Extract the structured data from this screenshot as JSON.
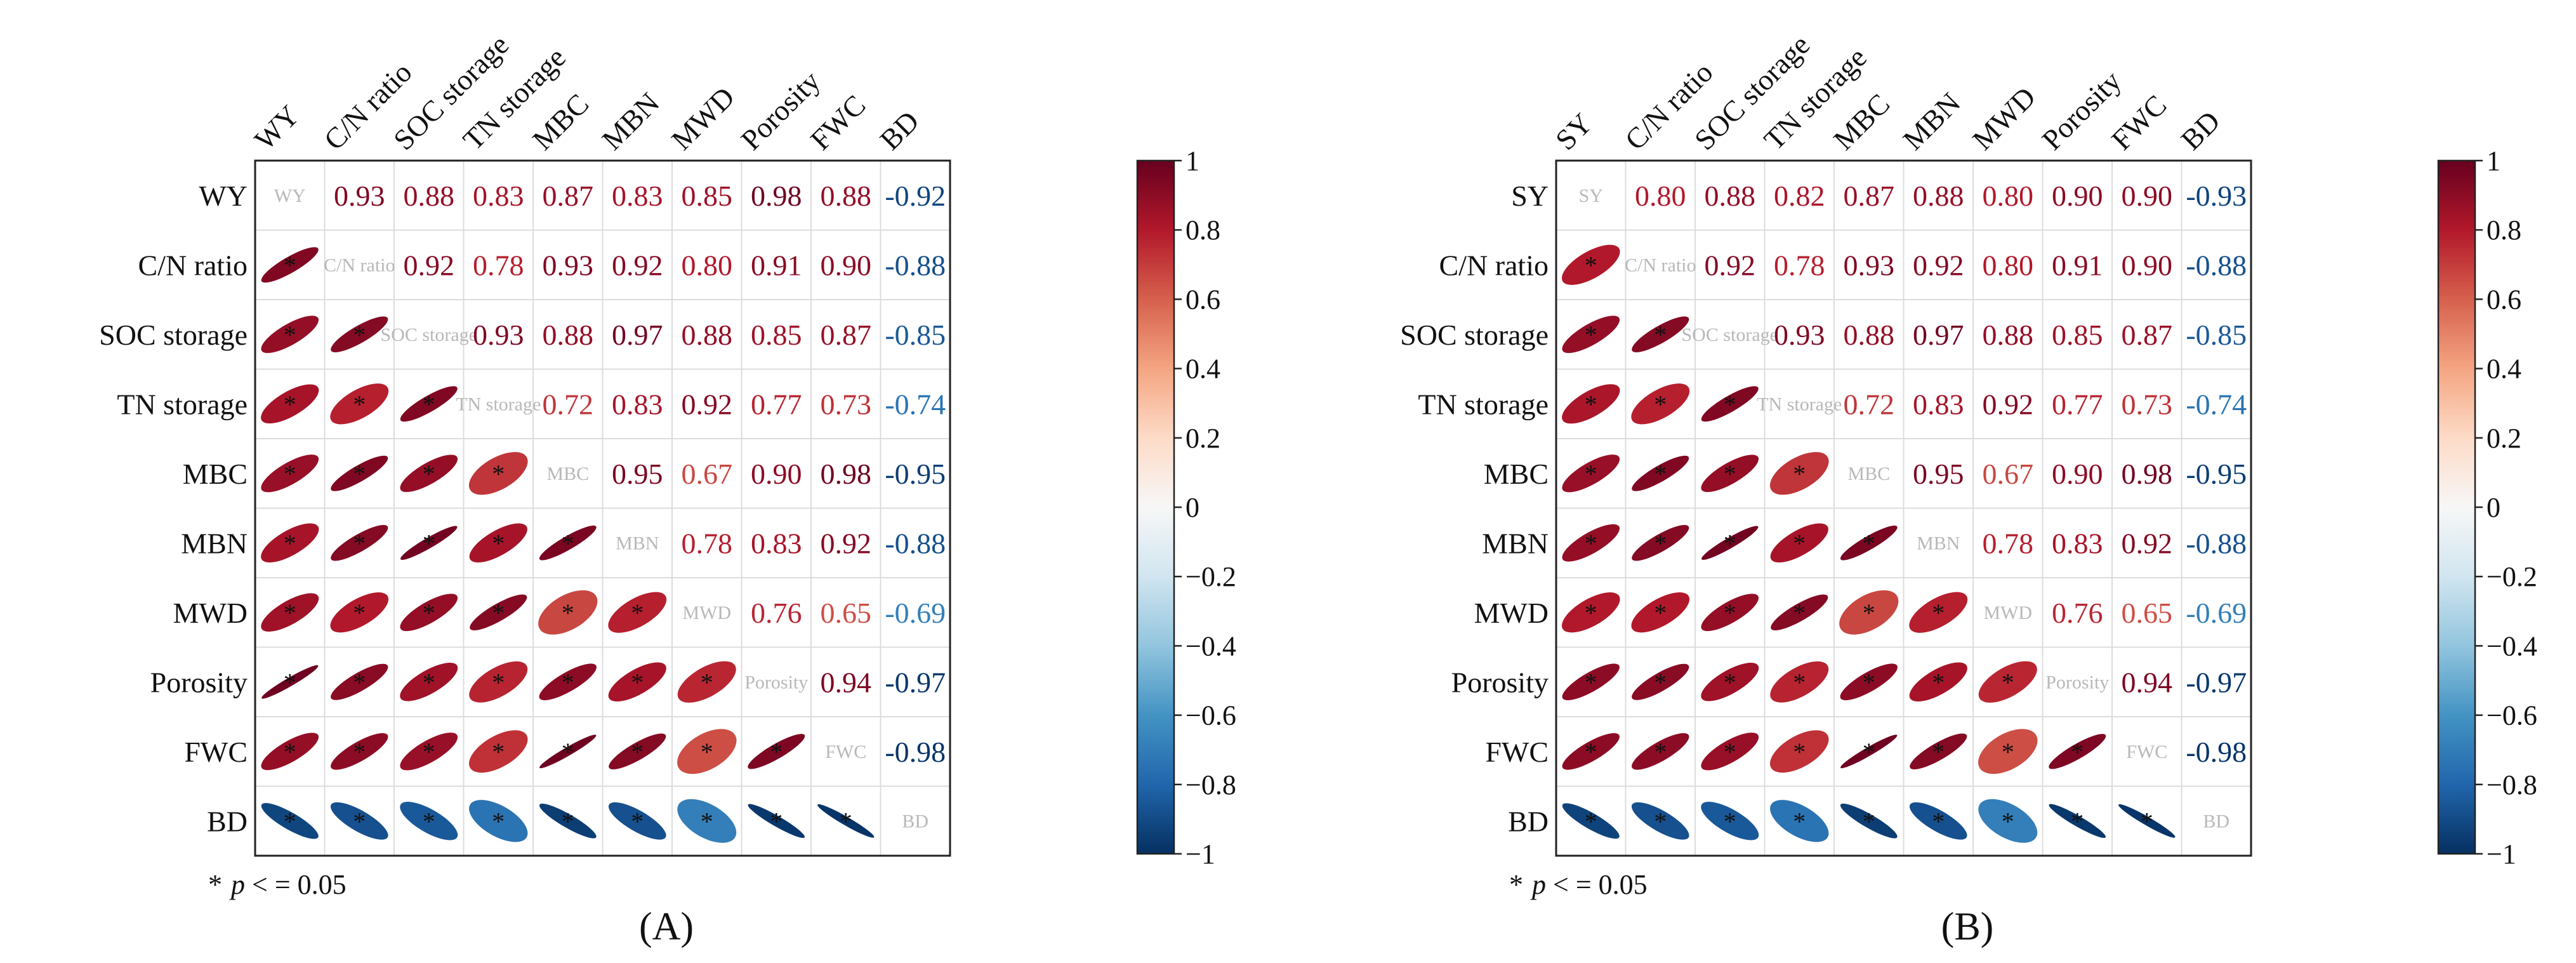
{
  "colors": {
    "neg": "#053061",
    "mid": "#f7f7f7",
    "pos": "#67001f",
    "grid": "#dcdcdc",
    "diag_text": "#b8b8b8"
  },
  "colorbar_ticks": [
    "1",
    "0.8",
    "0.6",
    "0.4",
    "0.2",
    "0",
    "−0.2",
    "−0.4",
    "−0.6",
    "−0.8",
    "−1"
  ],
  "chart_data": [
    {
      "type": "heatmap",
      "panel_label": "(A)",
      "footnote": {
        "star": "*",
        "p": "p",
        "rest": " < = 0.05"
      },
      "variables": [
        "WY",
        "C/N ratio",
        "SOC storage",
        "TN storage",
        "MBC",
        "MBN",
        "MWD",
        "Porosity",
        "FWC",
        "BD"
      ],
      "matrix": [
        [
          1,
          0.93,
          0.88,
          0.83,
          0.87,
          0.83,
          0.85,
          0.98,
          0.88,
          -0.92
        ],
        [
          0.93,
          1,
          0.92,
          0.78,
          0.93,
          0.92,
          0.8,
          0.91,
          0.9,
          -0.88
        ],
        [
          0.88,
          0.92,
          1,
          0.93,
          0.88,
          0.97,
          0.88,
          0.85,
          0.87,
          -0.85
        ],
        [
          0.83,
          0.78,
          0.93,
          1,
          0.72,
          0.83,
          0.92,
          0.77,
          0.73,
          -0.74
        ],
        [
          0.87,
          0.93,
          0.88,
          0.72,
          1,
          0.95,
          0.67,
          0.9,
          0.98,
          -0.95
        ],
        [
          0.83,
          0.92,
          0.97,
          0.83,
          0.95,
          1,
          0.78,
          0.83,
          0.92,
          -0.88
        ],
        [
          0.85,
          0.8,
          0.88,
          0.92,
          0.67,
          0.78,
          1,
          0.76,
          0.65,
          -0.69
        ],
        [
          0.98,
          0.91,
          0.85,
          0.77,
          0.9,
          0.83,
          0.76,
          1,
          0.94,
          -0.97
        ],
        [
          0.88,
          0.9,
          0.87,
          0.73,
          0.98,
          0.92,
          0.65,
          0.94,
          1,
          -0.98
        ],
        [
          -0.92,
          -0.88,
          -0.85,
          -0.74,
          -0.95,
          -0.88,
          -0.69,
          -0.97,
          -0.98,
          1
        ]
      ],
      "upper_labels": [
        [
          "WY",
          "0.93",
          "0.88",
          "0.83",
          "0.87",
          "0.83",
          "0.85",
          "0.98",
          "0.88",
          "-0.92"
        ],
        [
          "",
          "C/N ratio",
          "0.92",
          "0.78",
          "0.93",
          "0.92",
          "0.80",
          "0.91",
          "0.90",
          "-0.88"
        ],
        [
          "",
          "",
          "SOC storage",
          "0.93",
          "0.88",
          "0.97",
          "0.88",
          "0.85",
          "0.87",
          "-0.85"
        ],
        [
          "",
          "",
          "",
          "TN storage",
          "0.72",
          "0.83",
          "0.92",
          "0.77",
          "0.73",
          "-0.74"
        ],
        [
          "",
          "",
          "",
          "",
          "MBC",
          "0.95",
          "0.67",
          "0.90",
          "0.98",
          "-0.95"
        ],
        [
          "",
          "",
          "",
          "",
          "",
          "MBN",
          "0.78",
          "0.83",
          "0.92",
          "-0.88"
        ],
        [
          "",
          "",
          "",
          "",
          "",
          "",
          "MWD",
          "0.76",
          "0.65",
          "-0.69"
        ],
        [
          "",
          "",
          "",
          "",
          "",
          "",
          "",
          "Porosity",
          "0.94",
          "-0.97"
        ],
        [
          "",
          "",
          "",
          "",
          "",
          "",
          "",
          "",
          "FWC",
          "-0.98"
        ],
        [
          "",
          "",
          "",
          "",
          "",
          "",
          "",
          "",
          "",
          "BD"
        ]
      ],
      "significance_marker": "*",
      "colorbar": {
        "min": -1,
        "max": 1
      }
    },
    {
      "type": "heatmap",
      "panel_label": "(B)",
      "footnote": {
        "star": "*",
        "p": "p",
        "rest": " < = 0.05"
      },
      "variables": [
        "SY",
        "C/N ratio",
        "SOC storage",
        "TN storage",
        "MBC",
        "MBN",
        "MWD",
        "Porosity",
        "FWC",
        "BD"
      ],
      "matrix": [
        [
          1,
          0.8,
          0.88,
          0.82,
          0.87,
          0.88,
          0.8,
          0.9,
          0.9,
          -0.93
        ],
        [
          0.8,
          1,
          0.92,
          0.78,
          0.93,
          0.92,
          0.8,
          0.91,
          0.9,
          -0.88
        ],
        [
          0.88,
          0.92,
          1,
          0.93,
          0.88,
          0.97,
          0.88,
          0.85,
          0.87,
          -0.85
        ],
        [
          0.82,
          0.78,
          0.93,
          1,
          0.72,
          0.83,
          0.92,
          0.77,
          0.73,
          -0.74
        ],
        [
          0.87,
          0.93,
          0.88,
          0.72,
          1,
          0.95,
          0.67,
          0.9,
          0.98,
          -0.95
        ],
        [
          0.88,
          0.92,
          0.97,
          0.83,
          0.95,
          1,
          0.78,
          0.83,
          0.92,
          -0.88
        ],
        [
          0.8,
          0.8,
          0.88,
          0.92,
          0.67,
          0.78,
          1,
          0.76,
          0.65,
          -0.69
        ],
        [
          0.9,
          0.91,
          0.85,
          0.77,
          0.9,
          0.83,
          0.76,
          1,
          0.94,
          -0.97
        ],
        [
          0.9,
          0.9,
          0.87,
          0.73,
          0.98,
          0.92,
          0.65,
          0.94,
          1,
          -0.98
        ],
        [
          -0.93,
          -0.88,
          -0.85,
          -0.74,
          -0.95,
          -0.88,
          -0.69,
          -0.97,
          -0.98,
          1
        ]
      ],
      "upper_labels": [
        [
          "SY",
          "0.80",
          "0.88",
          "0.82",
          "0.87",
          "0.88",
          "0.80",
          "0.90",
          "0.90",
          "-0.93"
        ],
        [
          "",
          "C/N ratio",
          "0.92",
          "0.78",
          "0.93",
          "0.92",
          "0.80",
          "0.91",
          "0.90",
          "-0.88"
        ],
        [
          "",
          "",
          "SOC storage",
          "0.93",
          "0.88",
          "0.97",
          "0.88",
          "0.85",
          "0.87",
          "-0.85"
        ],
        [
          "",
          "",
          "",
          "TN storage",
          "0.72",
          "0.83",
          "0.92",
          "0.77",
          "0.73",
          "-0.74"
        ],
        [
          "",
          "",
          "",
          "",
          "MBC",
          "0.95",
          "0.67",
          "0.90",
          "0.98",
          "-0.95"
        ],
        [
          "",
          "",
          "",
          "",
          "",
          "MBN",
          "0.78",
          "0.83",
          "0.92",
          "-0.88"
        ],
        [
          "",
          "",
          "",
          "",
          "",
          "",
          "MWD",
          "0.76",
          "0.65",
          "-0.69"
        ],
        [
          "",
          "",
          "",
          "",
          "",
          "",
          "",
          "Porosity",
          "0.94",
          "-0.97"
        ],
        [
          "",
          "",
          "",
          "",
          "",
          "",
          "",
          "",
          "FWC",
          "-0.98"
        ],
        [
          "",
          "",
          "",
          "",
          "",
          "",
          "",
          "",
          "",
          "BD"
        ]
      ],
      "significance_marker": "*",
      "colorbar": {
        "min": -1,
        "max": 1
      }
    }
  ]
}
